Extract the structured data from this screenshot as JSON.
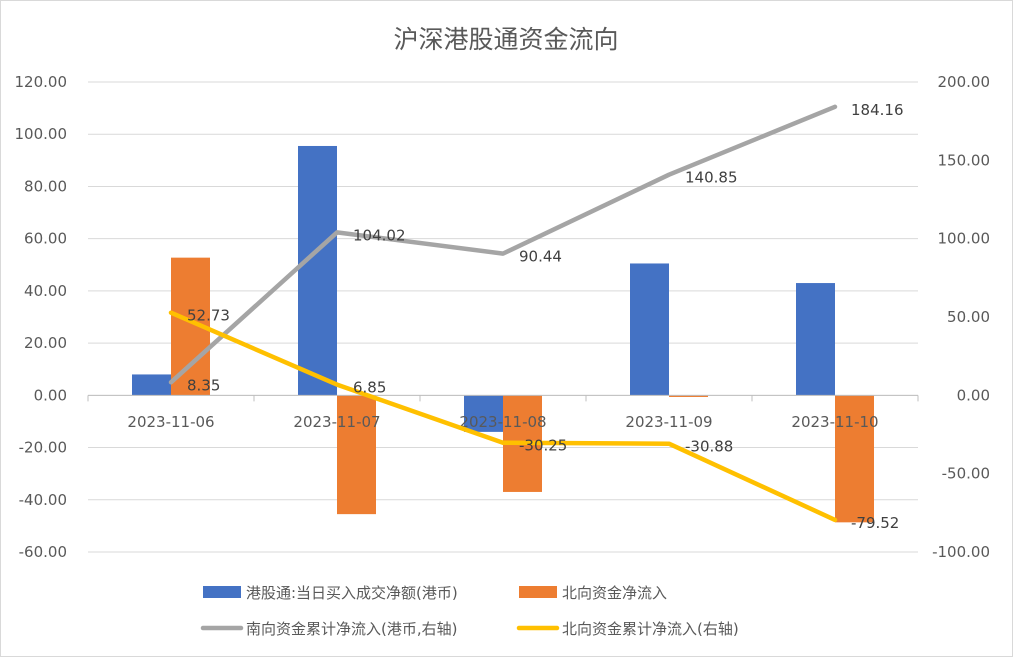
{
  "chart_data": {
    "type": "bar",
    "title": "沪深港股通资金流向",
    "categories": [
      "2023-11-06",
      "2023-11-07",
      "2023-11-08",
      "2023-11-09",
      "2023-11-10"
    ],
    "y_left": {
      "range": [
        -60,
        120
      ],
      "ticks": [
        "120.00",
        "100.00",
        "80.00",
        "60.00",
        "40.00",
        "20.00",
        "0.00",
        "-20.00",
        "-40.00",
        "-60.00"
      ]
    },
    "y_right": {
      "range": [
        -100,
        200
      ],
      "ticks": [
        "200.00",
        "150.00",
        "100.00",
        "50.00",
        "0.00",
        "-50.00",
        "-100.00"
      ]
    },
    "grid": true,
    "legend_position": "bottom",
    "series": [
      {
        "name": "港股通:当日买入成交净额(港币)",
        "type": "bar",
        "axis": "left",
        "color": "#4472C4",
        "values": [
          8.0,
          95.5,
          -14.0,
          50.5,
          43.0
        ]
      },
      {
        "name": "北向资金净流入",
        "type": "bar",
        "axis": "left",
        "color": "#ED7D31",
        "values": [
          52.73,
          -45.5,
          -37.0,
          -0.63,
          -48.64
        ]
      },
      {
        "name": "南向资金累计净流入(港币,右轴)",
        "type": "line",
        "axis": "right",
        "color": "#A5A5A5",
        "values": [
          8.35,
          104.02,
          90.44,
          140.85,
          184.16
        ],
        "labels": [
          "8.35",
          "104.02",
          "90.44",
          "140.85",
          "184.16"
        ]
      },
      {
        "name": "北向资金累计净流入(右轴)",
        "type": "line",
        "axis": "right",
        "color": "#FFC000",
        "values": [
          52.73,
          6.85,
          -30.25,
          -30.88,
          -79.52
        ],
        "labels": [
          "52.73",
          "6.85",
          "-30.25",
          "-30.88",
          "-79.52"
        ]
      }
    ]
  }
}
